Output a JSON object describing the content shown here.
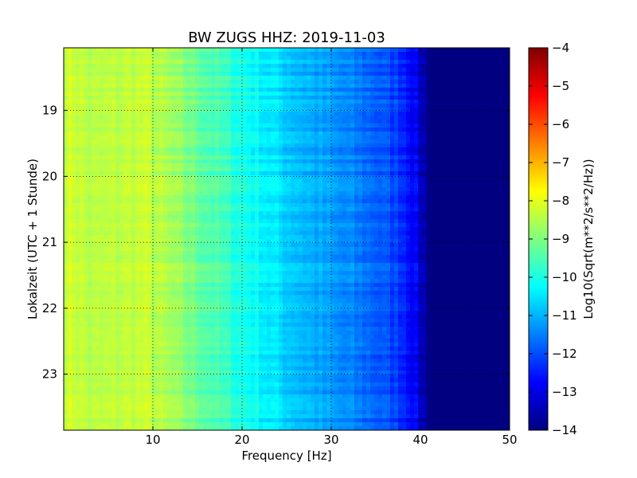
{
  "chart_data": {
    "type": "heatmap",
    "title": "BW ZUGS HHZ: 2019-11-03",
    "xlabel": "Frequency [Hz]",
    "ylabel": "Lokalzeit (UTC + 1 Stunde)",
    "xlim": [
      0,
      50
    ],
    "ylim": [
      18.05,
      23.85
    ],
    "xticks": [
      10,
      20,
      30,
      40,
      50
    ],
    "yticks": [
      19,
      20,
      21,
      22,
      23
    ],
    "grid": true,
    "colorbar": {
      "label": "Log10(Sqrt(m**2/s**2/Hz))",
      "range": [
        -14,
        -4
      ],
      "ticks": [
        -4,
        -5,
        -6,
        -7,
        -8,
        -9,
        -10,
        -11,
        -12,
        -13,
        -14
      ],
      "colormap": "jet"
    },
    "frequency_profile": {
      "frequency_hz": [
        0,
        1,
        3,
        6,
        9,
        12,
        15,
        20,
        25,
        30,
        35,
        38,
        39.5,
        41,
        50
      ],
      "log10_amplitude": [
        -8.3,
        -8.2,
        -8.5,
        -8.4,
        -8.3,
        -8.7,
        -9.2,
        -10.0,
        -10.7,
        -11.3,
        -11.8,
        -12.3,
        -12.9,
        -14.0,
        -14.0
      ]
    }
  }
}
